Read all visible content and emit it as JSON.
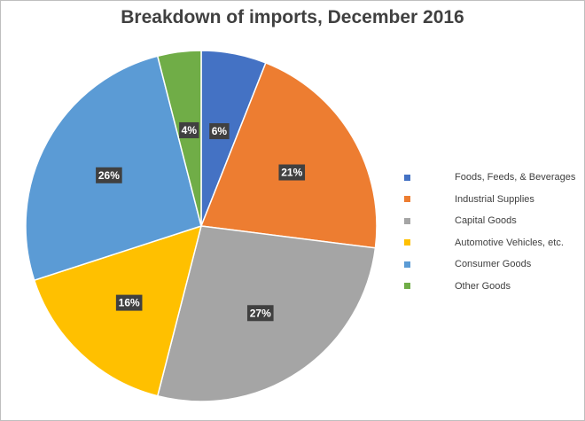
{
  "chart_data": {
    "type": "pie",
    "title": "Breakdown of imports, December 2016",
    "legend_position": "right",
    "slices": [
      {
        "label": "Foods, Feeds, & Beverages",
        "value": 6,
        "value_label": "6%",
        "color": "#4472c4"
      },
      {
        "label": "Industrial Supplies",
        "value": 21,
        "value_label": "21%",
        "color": "#ed7d31"
      },
      {
        "label": "Capital Goods",
        "value": 27,
        "value_label": "27%",
        "color": "#a5a5a5"
      },
      {
        "label": "Automotive Vehicles, etc.",
        "value": 16,
        "value_label": "16%",
        "color": "#ffc000"
      },
      {
        "label": "Consumer Goods",
        "value": 26,
        "value_label": "26%",
        "color": "#5b9bd5"
      },
      {
        "label": "Other Goods",
        "value": 4,
        "value_label": "4%",
        "color": "#70ad47"
      }
    ]
  }
}
